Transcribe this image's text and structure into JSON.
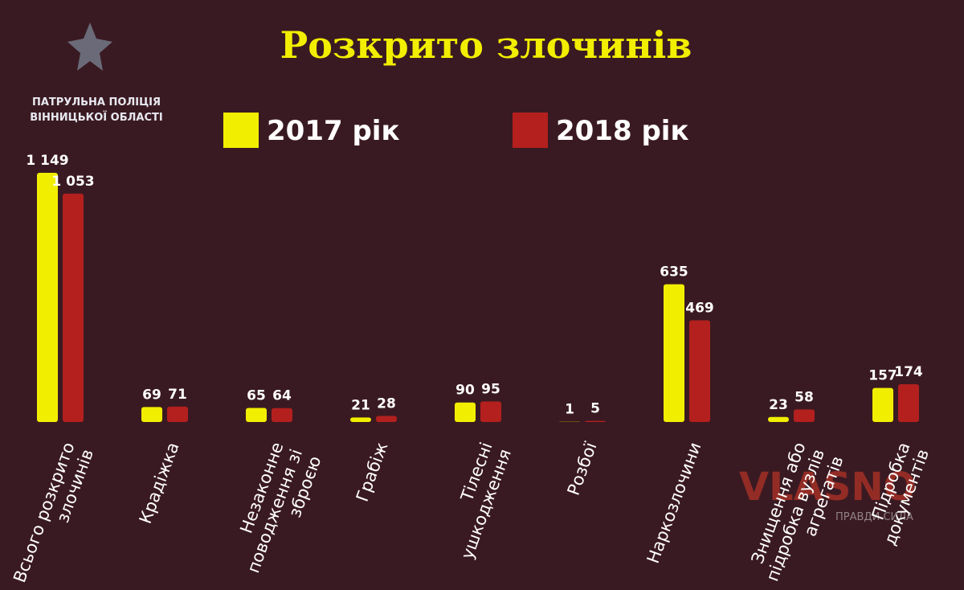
{
  "header": {
    "org": "ПАТРУЛЬНА ПОЛІЦІЯ ВІННИЦЬКОЇ ОБЛАСТІ"
  },
  "watermark": {
    "brand": "VLASNO",
    "tagline": "ПРАВДИ СИЛА"
  },
  "chart_data": {
    "type": "bar",
    "title": "Розкрито злочинів",
    "categories": [
      "Всього розкрито злочинів",
      "Крадіжка",
      "Незаконне поводження зі зброєю",
      "Грабіж",
      "Тілесні ушкодження",
      "Розбої",
      "Наркозлочини",
      "Знищення або підробка вузлів агрегатів",
      "Підробка документів"
    ],
    "series": [
      {
        "name": "2017 рік",
        "color": "#f2ee00",
        "values": [
          1149,
          69,
          65,
          21,
          90,
          1,
          635,
          23,
          157
        ],
        "value_labels": [
          "1 149",
          "69",
          "65",
          "21",
          "90",
          "1",
          "635",
          "23",
          "157"
        ]
      },
      {
        "name": "2018 рік",
        "color": "#b3201e",
        "values": [
          1053,
          71,
          64,
          28,
          95,
          5,
          469,
          58,
          174
        ],
        "value_labels": [
          "1 053",
          "71",
          "64",
          "28",
          "95",
          "5",
          "469",
          "58",
          "174"
        ]
      }
    ]
  }
}
